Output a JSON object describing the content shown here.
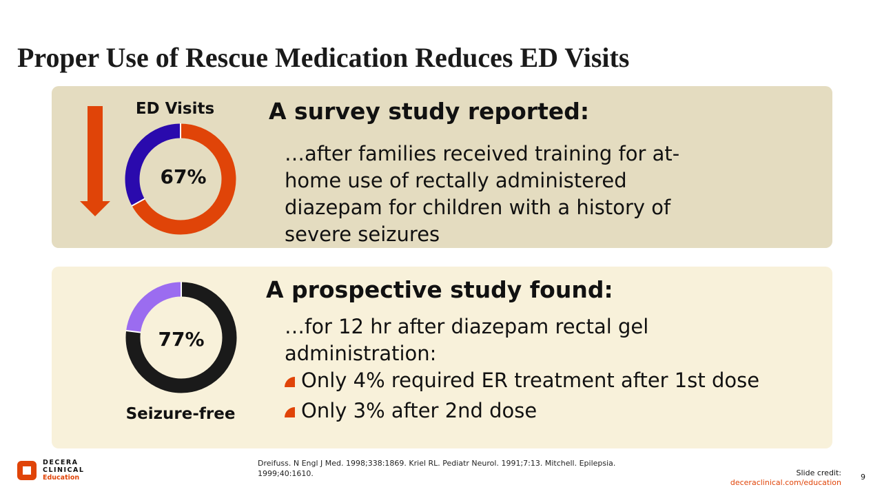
{
  "title": "Proper Use of Rescue Medication Reduces ED Visits",
  "section1": {
    "donut_label": "ED Visits",
    "donut_value": "67%",
    "percent": 67,
    "colors": {
      "main": "#e04408",
      "rest": "#2a0aad"
    },
    "heading": "A survey study reported:",
    "body": "…after families received training for at-home use of rectally administered diazepam for children with a history of severe seizures"
  },
  "section2": {
    "donut_label": "Seizure-free",
    "donut_value": "77%",
    "percent": 77,
    "colors": {
      "main": "#1a1a1a",
      "rest": "#9b6cf0"
    },
    "heading": "A prospective study found:",
    "body": "…for 12 hr after diazepam rectal gel administration:",
    "bullets": [
      "Only 4% required ER treatment after 1st dose",
      "Only 3% after 2nd dose"
    ]
  },
  "logo": {
    "line1": "DECERA",
    "line2": "CLINICAL",
    "line3": "Education"
  },
  "references": "Dreifuss. N Engl J Med. 1998;338:1869. Kriel RL. Pediatr Neurol. 1991;7:13. Mitchell. Epilepsia. 1999;40:1610.",
  "credit": {
    "label": "Slide credit:",
    "link": "deceraclinical.com/education"
  },
  "page_number": "9",
  "accent": "#e04408"
}
